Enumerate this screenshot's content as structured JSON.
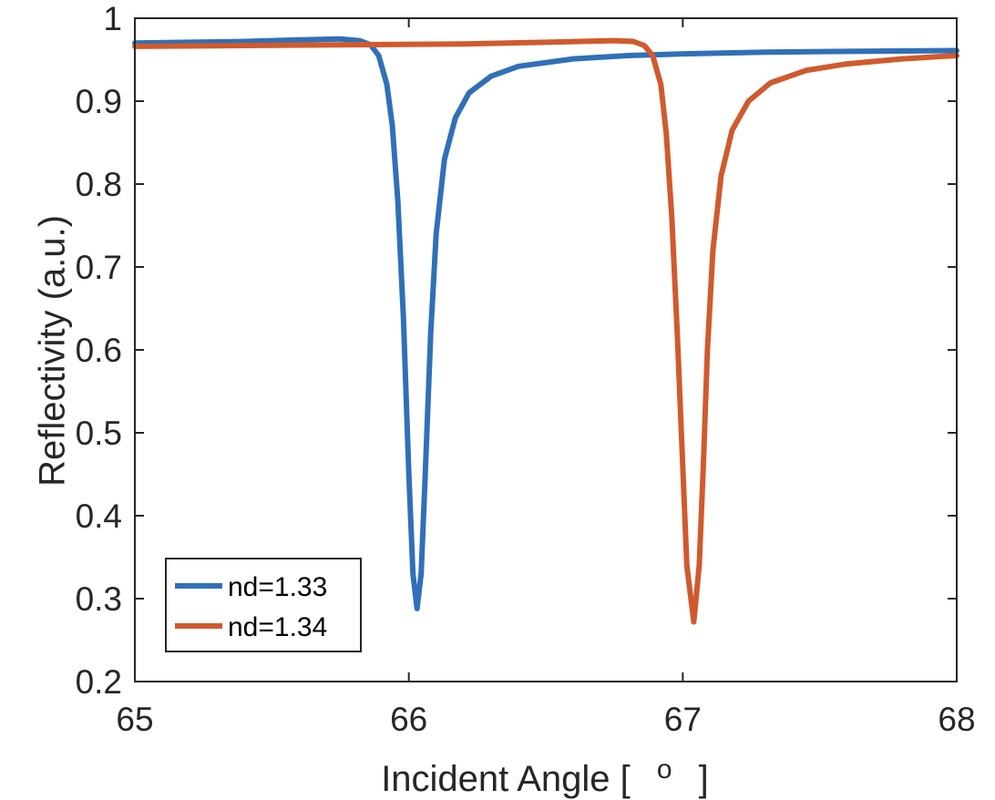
{
  "chart_data": {
    "type": "line",
    "title": "",
    "xlabel": "Incident Angle [ ° ]",
    "xlabel_parts": {
      "main": "Incident Angle [",
      "super": "o",
      "close": "]"
    },
    "ylabel": "Reflectivity (a.u.)",
    "xlim": [
      65,
      68
    ],
    "ylim": [
      0.2,
      1
    ],
    "xticks": [
      65,
      66,
      67,
      68
    ],
    "xtick_labels": [
      "65",
      "66",
      "67",
      "68"
    ],
    "yticks": [
      0.2,
      0.3,
      0.4,
      0.5,
      0.6,
      0.7,
      0.8,
      0.9,
      1
    ],
    "ytick_labels": [
      "0.2",
      "0.3",
      "0.4",
      "0.5",
      "0.6",
      "0.7",
      "0.8",
      "0.9",
      "1"
    ],
    "grid": false,
    "legend_position": "bottom-left",
    "series": [
      {
        "name": "nd=1.33",
        "color": "#3070B8",
        "points": [
          [
            65.0,
            0.97
          ],
          [
            65.2,
            0.971
          ],
          [
            65.4,
            0.972
          ],
          [
            65.6,
            0.974
          ],
          [
            65.75,
            0.975
          ],
          [
            65.82,
            0.973
          ],
          [
            65.86,
            0.968
          ],
          [
            65.89,
            0.955
          ],
          [
            65.92,
            0.92
          ],
          [
            65.94,
            0.87
          ],
          [
            65.96,
            0.78
          ],
          [
            65.98,
            0.64
          ],
          [
            66.0,
            0.45
          ],
          [
            66.015,
            0.33
          ],
          [
            66.03,
            0.288
          ],
          [
            66.045,
            0.33
          ],
          [
            66.06,
            0.45
          ],
          [
            66.08,
            0.62
          ],
          [
            66.1,
            0.74
          ],
          [
            66.13,
            0.83
          ],
          [
            66.17,
            0.88
          ],
          [
            66.22,
            0.91
          ],
          [
            66.3,
            0.93
          ],
          [
            66.4,
            0.942
          ],
          [
            66.6,
            0.951
          ],
          [
            66.8,
            0.955
          ],
          [
            67.0,
            0.957
          ],
          [
            67.3,
            0.959
          ],
          [
            67.6,
            0.96
          ],
          [
            68.0,
            0.961
          ]
        ]
      },
      {
        "name": "nd=1.34",
        "color": "#D05A2E",
        "points": [
          [
            65.0,
            0.966
          ],
          [
            65.4,
            0.967
          ],
          [
            65.8,
            0.968
          ],
          [
            66.2,
            0.969
          ],
          [
            66.5,
            0.971
          ],
          [
            66.75,
            0.973
          ],
          [
            66.82,
            0.972
          ],
          [
            66.86,
            0.967
          ],
          [
            66.89,
            0.955
          ],
          [
            66.92,
            0.92
          ],
          [
            66.94,
            0.86
          ],
          [
            66.96,
            0.76
          ],
          [
            66.98,
            0.62
          ],
          [
            67.0,
            0.46
          ],
          [
            67.015,
            0.34
          ],
          [
            67.04,
            0.272
          ],
          [
            67.06,
            0.34
          ],
          [
            67.075,
            0.46
          ],
          [
            67.09,
            0.6
          ],
          [
            67.11,
            0.72
          ],
          [
            67.14,
            0.81
          ],
          [
            67.18,
            0.865
          ],
          [
            67.24,
            0.9
          ],
          [
            67.32,
            0.922
          ],
          [
            67.45,
            0.937
          ],
          [
            67.6,
            0.945
          ],
          [
            67.8,
            0.951
          ],
          [
            68.0,
            0.955
          ]
        ]
      }
    ]
  }
}
